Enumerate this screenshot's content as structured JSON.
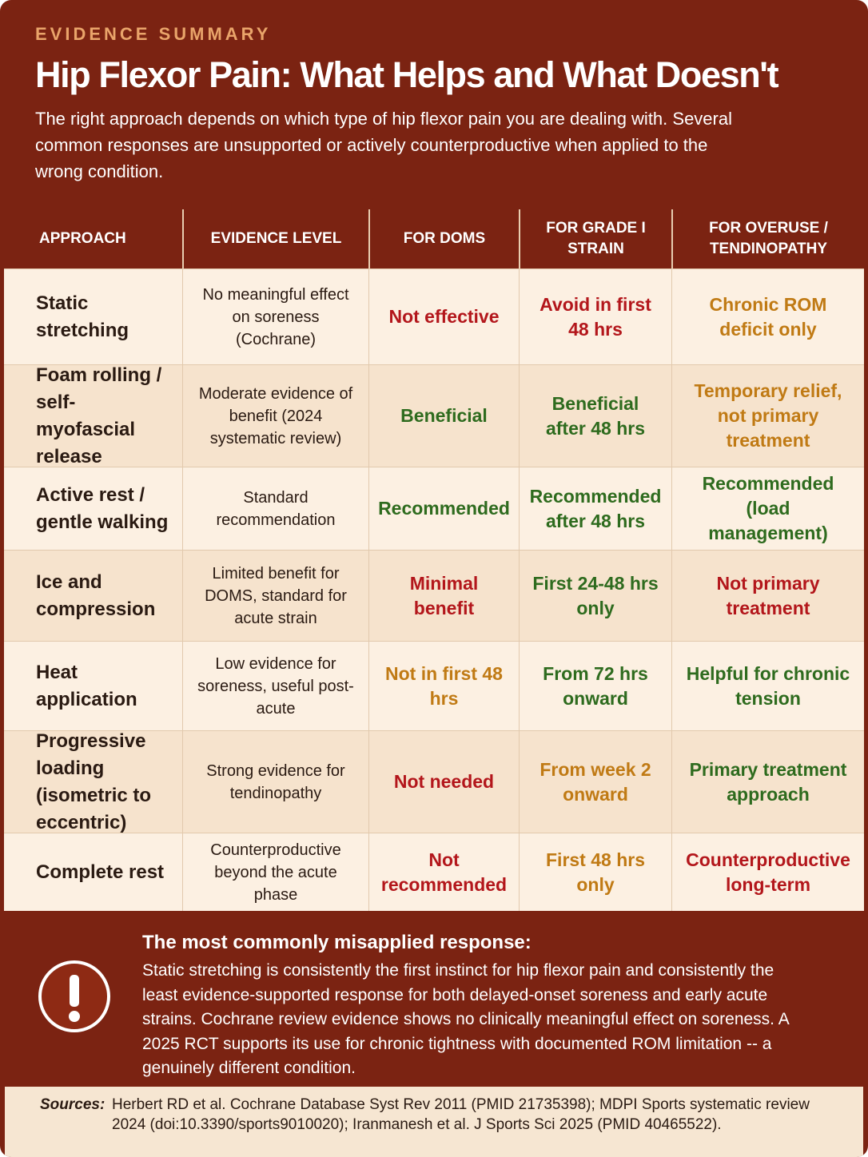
{
  "header": {
    "eyebrow": "EVIDENCE SUMMARY",
    "title": "Hip Flexor Pain: What Helps and What Doesn't",
    "subtitle": "The right approach depends on which type of hip flexor pain you are dealing with. Several common responses are unsupported or actively counterproductive when applied to the wrong condition."
  },
  "table": {
    "headers": [
      "APPROACH",
      "EVIDENCE LEVEL",
      "FOR DOMS",
      "FOR GRADE I STRAIN",
      "FOR OVERUSE / TENDINOPATHY"
    ],
    "rows": [
      {
        "approach": "Static stretching",
        "evidence": "No meaningful effect on soreness (Cochrane)",
        "cells": [
          {
            "text": "Not effective",
            "color": "#b3161b"
          },
          {
            "text": "Avoid in first 48 hrs",
            "color": "#b3161b"
          },
          {
            "text": "Chronic ROM deficit only",
            "color": "#c07a14"
          }
        ]
      },
      {
        "approach": "Foam rolling / self-myofascial release",
        "evidence": "Moderate evidence of benefit (2024 systematic review)",
        "cells": [
          {
            "text": "Beneficial",
            "color": "#2e6b1e"
          },
          {
            "text": "Beneficial after 48 hrs",
            "color": "#2e6b1e"
          },
          {
            "text": "Temporary relief, not primary treatment",
            "color": "#c07a14"
          }
        ]
      },
      {
        "approach": "Active rest / gentle walking",
        "evidence": "Standard recommendation",
        "cells": [
          {
            "text": "Recommended",
            "color": "#2e6b1e"
          },
          {
            "text": "Recommended after 48 hrs",
            "color": "#2e6b1e"
          },
          {
            "text": "Recommended (load management)",
            "color": "#2e6b1e"
          }
        ]
      },
      {
        "approach": "Ice and compression",
        "evidence": "Limited benefit for DOMS, standard for acute strain",
        "cells": [
          {
            "text": "Minimal benefit",
            "color": "#b3161b"
          },
          {
            "text": "First 24-48 hrs only",
            "color": "#2e6b1e"
          },
          {
            "text": "Not primary treatment",
            "color": "#b3161b"
          }
        ]
      },
      {
        "approach": "Heat application",
        "evidence": "Low evidence for soreness, useful post-acute",
        "cells": [
          {
            "text": "Not in first 48 hrs",
            "color": "#c07a14"
          },
          {
            "text": "From 72 hrs onward",
            "color": "#2e6b1e"
          },
          {
            "text": "Helpful for chronic tension",
            "color": "#2e6b1e"
          }
        ]
      },
      {
        "approach": "Progressive loading (isometric to eccentric)",
        "evidence": "Strong evidence for tendinopathy",
        "cells": [
          {
            "text": "Not needed",
            "color": "#b3161b"
          },
          {
            "text": "From week 2 onward",
            "color": "#c07a14"
          },
          {
            "text": "Primary treatment approach",
            "color": "#2e6b1e"
          }
        ]
      },
      {
        "approach": "Complete rest",
        "evidence": "Counterproductive beyond the acute phase",
        "cells": [
          {
            "text": "Not recommended",
            "color": "#b3161b"
          },
          {
            "text": "First 48 hrs only",
            "color": "#c07a14"
          },
          {
            "text": "Counterproductive long-term",
            "color": "#b3161b"
          }
        ]
      }
    ]
  },
  "callout": {
    "title": "The most commonly misapplied response:",
    "body": "Static stretching is consistently the first instinct for hip flexor pain and consistently the least evidence-supported response for both delayed-onset soreness and early acute strains. Cochrane review evidence shows no clinically meaningful effect on soreness. A 2025 RCT supports its use for chronic tightness with documented ROM limitation -- a genuinely different condition."
  },
  "sources": {
    "label": "Sources:",
    "text": "Herbert RD et al. Cochrane Database Syst Rev 2011 (PMID 21735398); MDPI Sports systematic review 2024 (doi:10.3390/sports9010020); Iranmanesh et al. J Sports Sci 2025 (PMID 40465522)."
  }
}
